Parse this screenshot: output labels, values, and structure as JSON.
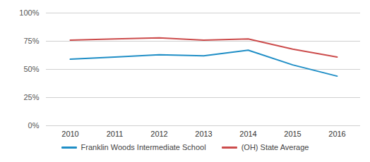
{
  "chart_data": {
    "type": "line",
    "categories": [
      "2010",
      "2011",
      "2012",
      "2013",
      "2014",
      "2015",
      "2016"
    ],
    "series": [
      {
        "name": "Franklin Woods Intermediate School",
        "color": "#1f8ec6",
        "values": [
          59,
          61,
          63,
          62,
          67,
          54,
          44
        ]
      },
      {
        "name": "(OH) State Average",
        "color": "#cc4c4c",
        "values": [
          76,
          77,
          78,
          76,
          77,
          68,
          61
        ]
      }
    ],
    "ylim": [
      0,
      100
    ],
    "yticks": [
      {
        "value": 0,
        "label": "0%"
      },
      {
        "value": 25,
        "label": "25%"
      },
      {
        "value": 50,
        "label": "50%"
      },
      {
        "value": 75,
        "label": "75%"
      },
      {
        "value": 100,
        "label": "100%"
      }
    ],
    "grid": true,
    "legend": "bottom"
  }
}
